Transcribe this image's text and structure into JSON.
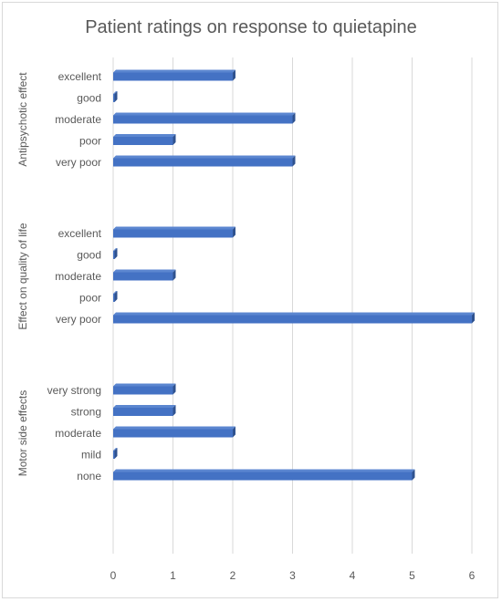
{
  "chart_data": {
    "type": "bar",
    "orientation": "horizontal",
    "title": "Patient ratings on response to quietapine",
    "xlim": [
      0,
      6
    ],
    "x_ticks": [
      0,
      1,
      2,
      3,
      4,
      5,
      6
    ],
    "grid": true,
    "legend": "none",
    "bar_color": "#4472c4",
    "groups": [
      {
        "name": "Antipsychotic effect",
        "categories": [
          "excellent",
          "good",
          "moderate",
          "poor",
          "very poor"
        ],
        "values": [
          2,
          0,
          3,
          1,
          3
        ]
      },
      {
        "name": "Effect on quality of life",
        "categories": [
          "excellent",
          "good",
          "moderate",
          "poor",
          "very poor"
        ],
        "values": [
          2,
          0,
          1,
          0,
          6
        ]
      },
      {
        "name": "Motor side effects",
        "categories": [
          "very strong",
          "strong",
          "moderate",
          "mild",
          "none"
        ],
        "values": [
          1,
          1,
          2,
          0,
          5
        ]
      }
    ]
  }
}
